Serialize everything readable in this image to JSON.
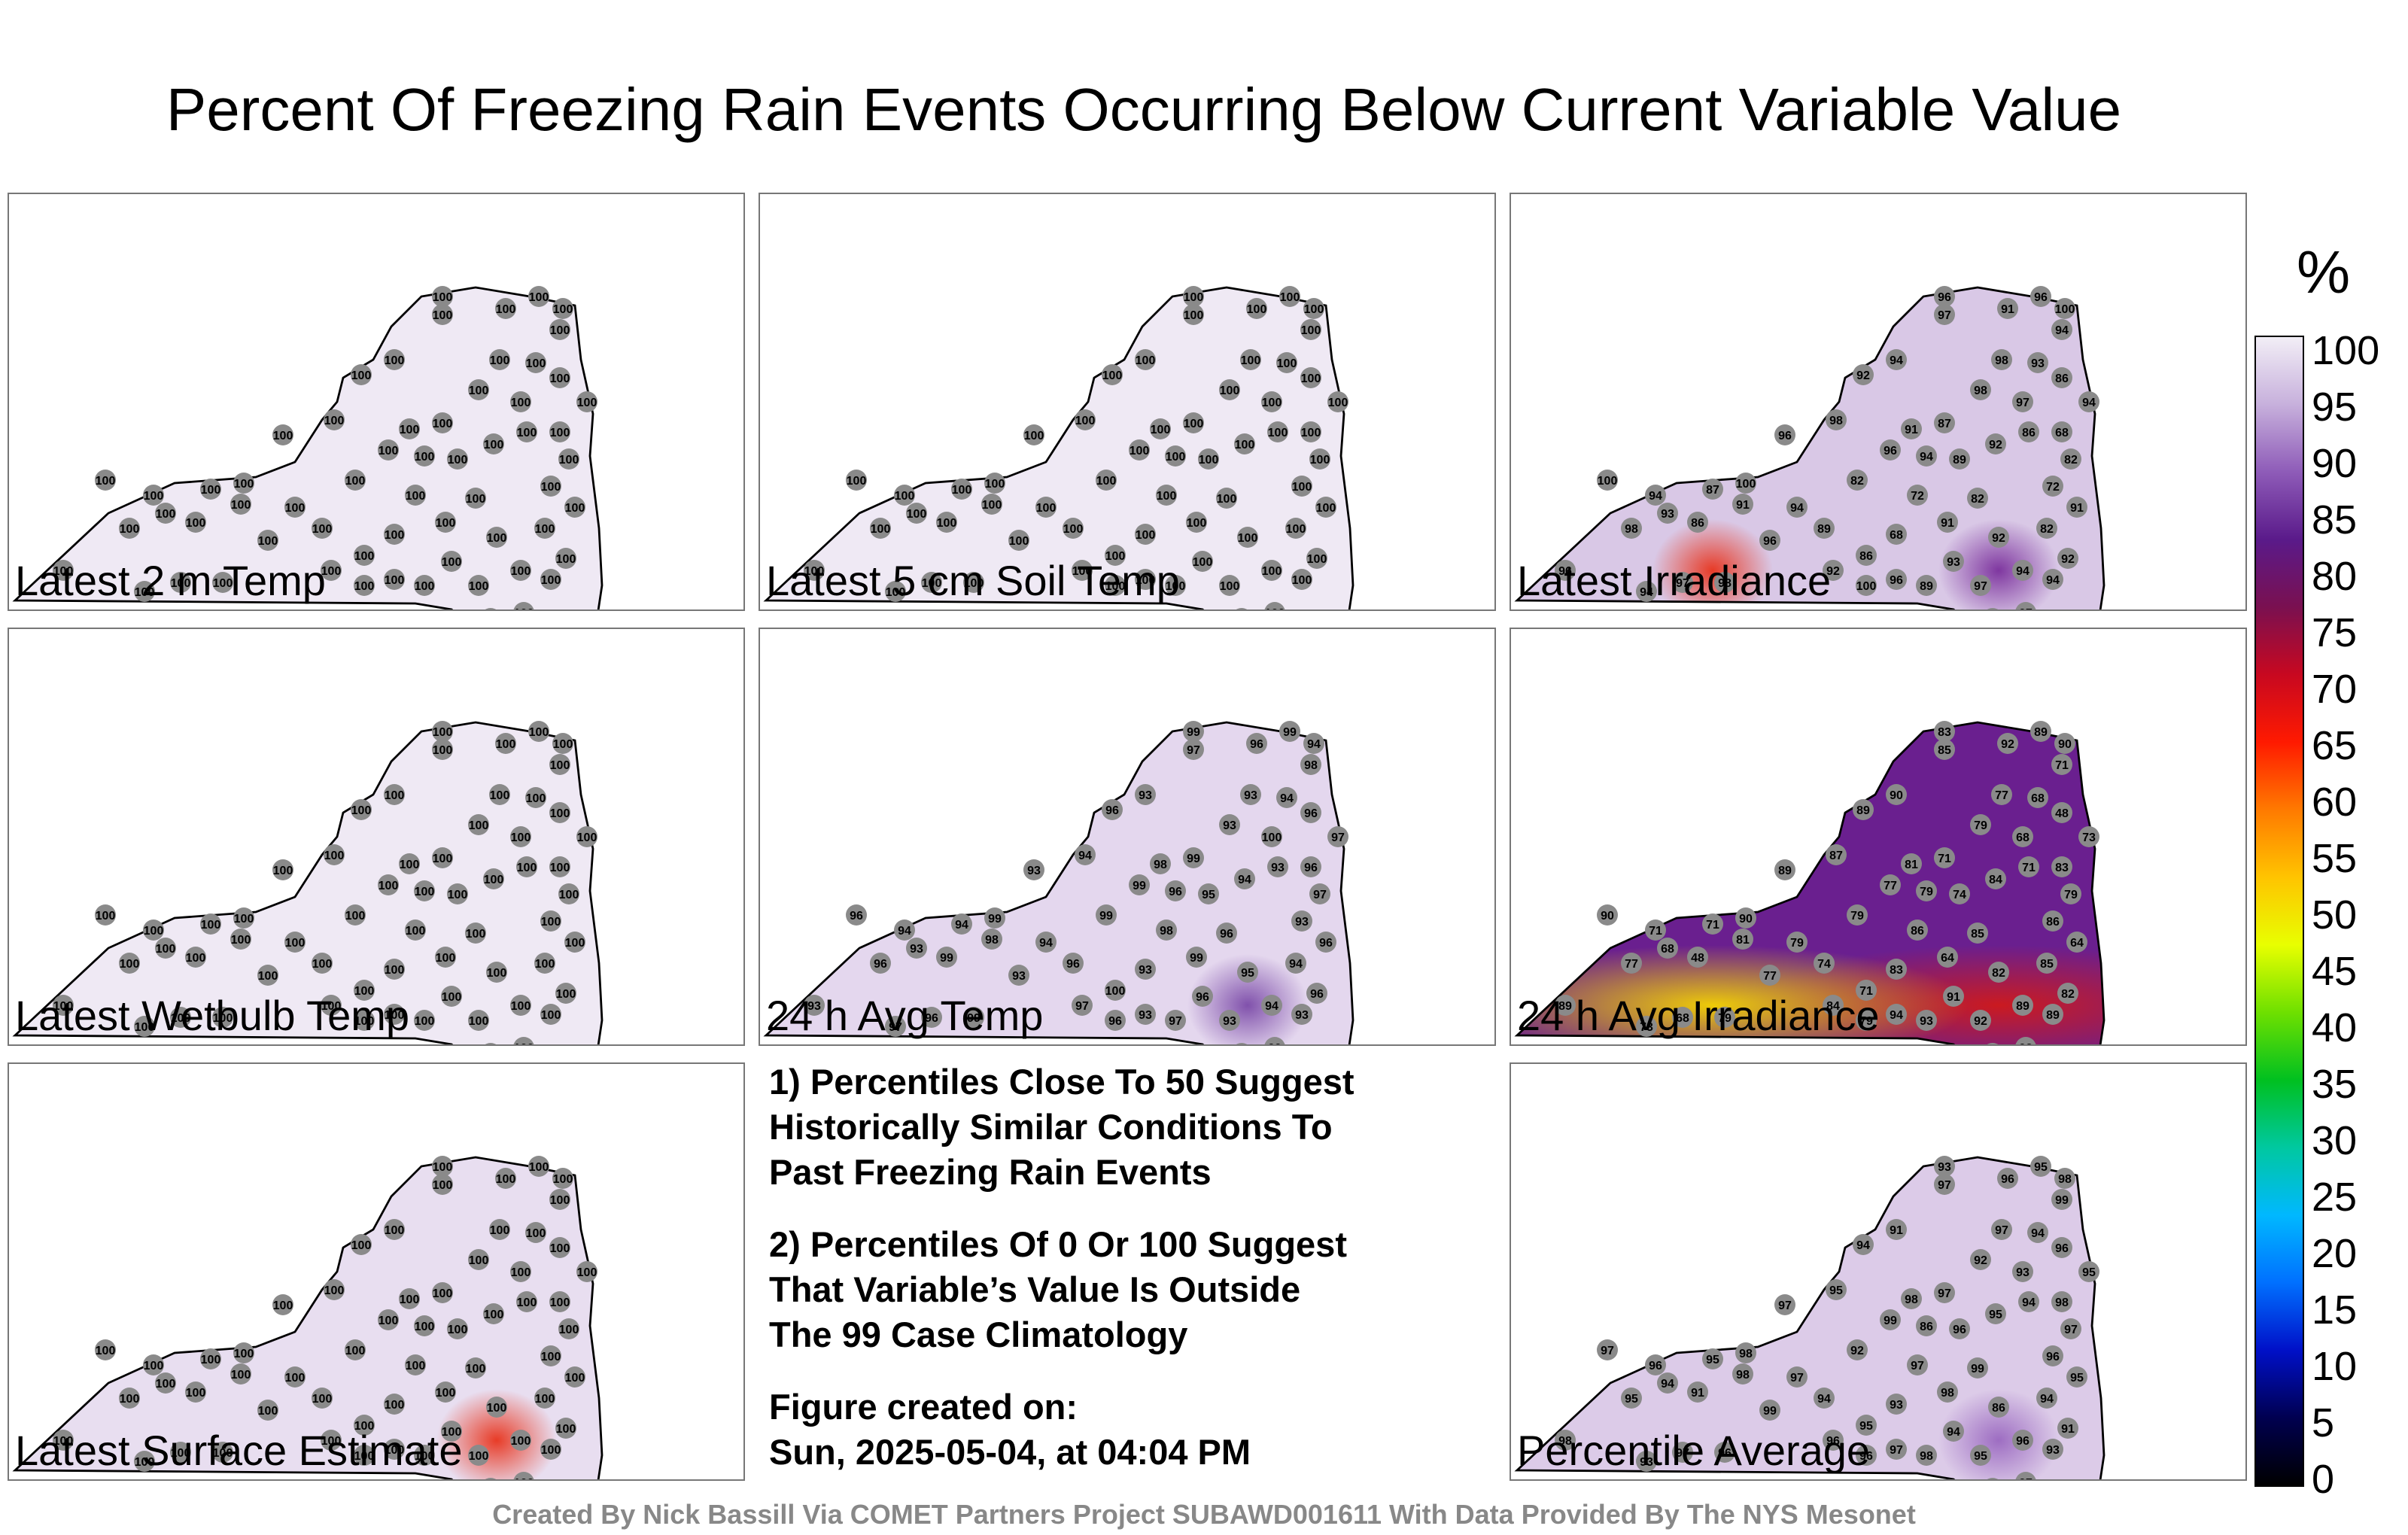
{
  "title": "Percent Of Freezing Rain Events Occurring Below Current Variable Value",
  "panels": [
    {
      "label": "Latest 2 m Temp",
      "fill": "#efe9f4",
      "hot": [],
      "values": "uniform100"
    },
    {
      "label": "Latest 5 cm Soil Temp",
      "fill": "#efe9f4",
      "hot": [],
      "values": "uniform100"
    },
    {
      "label": "Latest Irradiance",
      "fill": "#d9c8e6",
      "hot": [
        "#7a2f9c",
        "#e8331c"
      ],
      "values": "irradiance"
    },
    {
      "label": "Latest Wetbulb Temp",
      "fill": "#efe9f4",
      "hot": [],
      "values": "uniform100"
    },
    {
      "label": "24 h Avg Temp",
      "fill": "#e4d7ee",
      "hot": [
        "#7b4aa8"
      ],
      "values": "avgtemp"
    },
    {
      "label": "24 h Avg Irradiance",
      "fill": "#6a1f8f",
      "hot": [
        "#d01a1a",
        "#f5d400"
      ],
      "values": "avgirr"
    },
    {
      "label": "Latest Surface Estimate",
      "fill": "#e8def0",
      "hot": [
        "#e8331c"
      ],
      "values": "uniform100"
    },
    {
      "label": "Percentile Average",
      "fill": "#dccbe8",
      "hot": [
        "#9a68c0"
      ],
      "values": "average"
    }
  ],
  "notes": [
    "1) Percentiles Close To 50 Suggest\nHistorically Similar Conditions To\nPast Freezing Rain Events",
    "2) Percentiles Of 0 Or 100 Suggest\nThat Variable’s Value Is Outside\nThe 99 Case Climatology",
    "Figure created on:\nSun, 2025-05-04, at 04:04 PM"
  ],
  "colorbar": {
    "unit": "%",
    "ticks": [
      "100",
      "95",
      "90",
      "85",
      "80",
      "75",
      "70",
      "65",
      "60",
      "55",
      "50",
      "45",
      "40",
      "35",
      "30",
      "25",
      "20",
      "15",
      "10",
      "5",
      "0"
    ],
    "stops": [
      "#f2eef6",
      "#c7b0dc",
      "#8e5bb8",
      "#5a1a8a",
      "#7a1050",
      "#c80820",
      "#ff1a00",
      "#ff7a00",
      "#ffc400",
      "#e8ff00",
      "#6ee000",
      "#00c020",
      "#00c8a0",
      "#00b8ff",
      "#0070ff",
      "#0010c8",
      "#000050",
      "#000000"
    ]
  },
  "station_values": {
    "uniform100": [
      "100"
    ],
    "irradiance": [
      "96",
      "100",
      "94",
      "98",
      "93",
      "86",
      "94",
      "97",
      "98",
      "87",
      "91",
      "96",
      "94",
      "89",
      "92",
      "86",
      "68",
      "82",
      "72",
      "91",
      "82",
      "92",
      "94",
      "97",
      "93",
      "89",
      "96",
      "100",
      "98",
      "92",
      "94",
      "96",
      "97",
      "91"
    ],
    "avgtemp": [
      "93",
      "96",
      "94",
      "96",
      "93",
      "99",
      "97",
      "96",
      "99",
      "94",
      "98",
      "93",
      "94",
      "96",
      "97",
      "100",
      "93",
      "99",
      "98",
      "99",
      "96",
      "95",
      "94",
      "93",
      "96",
      "97"
    ],
    "avgirr": [
      "89",
      "90",
      "71",
      "77",
      "68",
      "48",
      "73",
      "68",
      "79",
      "71",
      "81",
      "77",
      "79",
      "74",
      "84",
      "71",
      "83",
      "79",
      "86",
      "64",
      "85",
      "82",
      "89",
      "92",
      "91",
      "93",
      "94",
      "79",
      "87",
      "89",
      "90",
      "83",
      "85",
      "92"
    ],
    "average": [
      "98",
      "97",
      "96",
      "95",
      "94",
      "91",
      "93",
      "97",
      "96",
      "95",
      "98",
      "99",
      "97",
      "94",
      "96",
      "95",
      "93",
      "92",
      "97",
      "98",
      "99",
      "86",
      "96",
      "95",
      "94"
    ]
  },
  "credit": "Created By Nick Bassill Via COMET Partners Project SUBAWD001611 With Data Provided By The NYS Mesonet"
}
